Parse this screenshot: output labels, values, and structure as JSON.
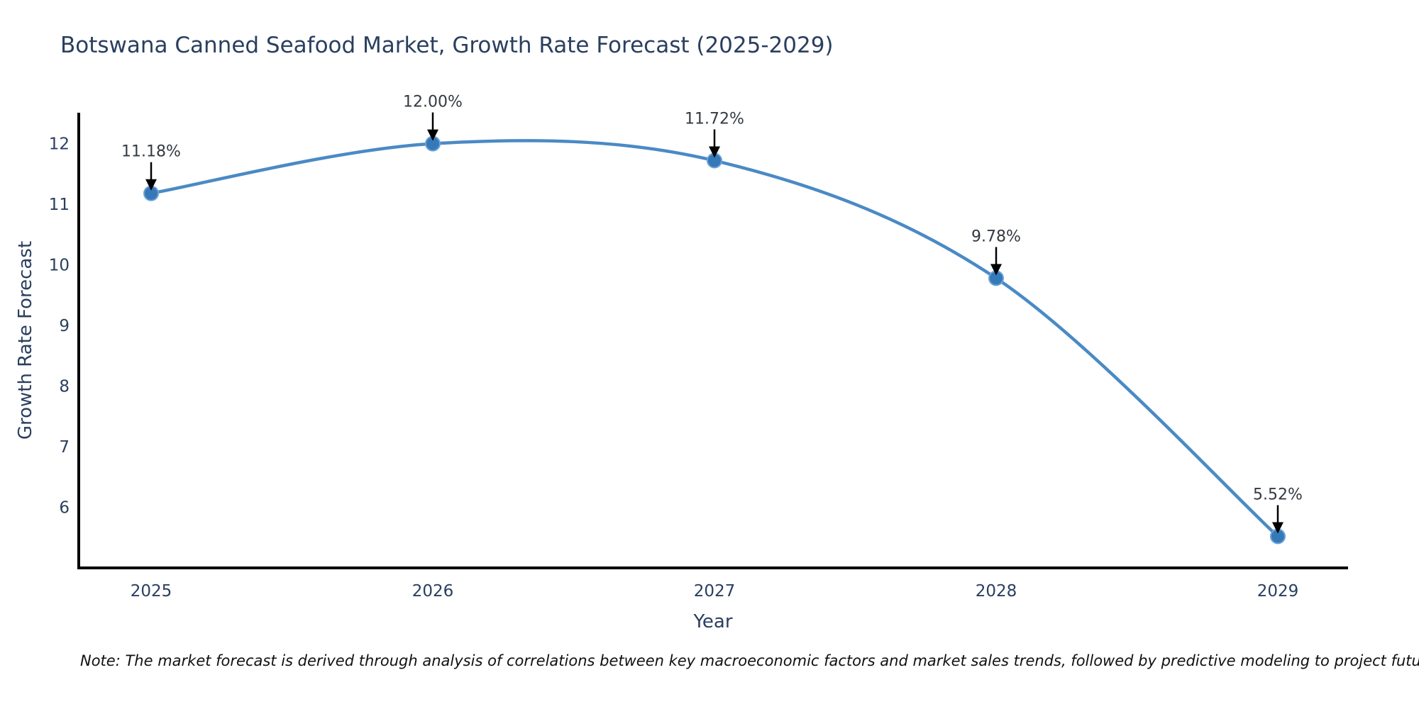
{
  "note": "Note: The market forecast is derived through analysis of correlations between key macroeconomic factors and market sales trends, followed by predictive modeling to project future sales",
  "chart_data": {
    "type": "line",
    "title": "Botswana Canned Seafood Market, Growth Rate Forecast (2025-2029)",
    "categories": [
      "2025",
      "2026",
      "2027",
      "2028",
      "2029"
    ],
    "series": [
      {
        "name": "Growth Rate Forecast",
        "values": [
          11.18,
          12.0,
          11.72,
          9.78,
          5.52
        ]
      }
    ],
    "point_labels": [
      "11.18%",
      "12.00%",
      "11.72%",
      "9.78%",
      "5.52%"
    ],
    "xlabel": "Year",
    "ylabel": "Growth Rate Forecast",
    "y_ticks": [
      6,
      7,
      8,
      9,
      10,
      11,
      12
    ],
    "ylim": [
      5.0,
      12.51
    ],
    "grid": false,
    "legend": "none",
    "line_shape": "spline",
    "colors": {
      "line": "#4a8ac5",
      "marker": "#3579b8",
      "marker_ring": "#6ba3d6",
      "axis": "#000000",
      "labels": "#2a3f5f",
      "annotation": "#333a42",
      "note": "#111111"
    }
  }
}
